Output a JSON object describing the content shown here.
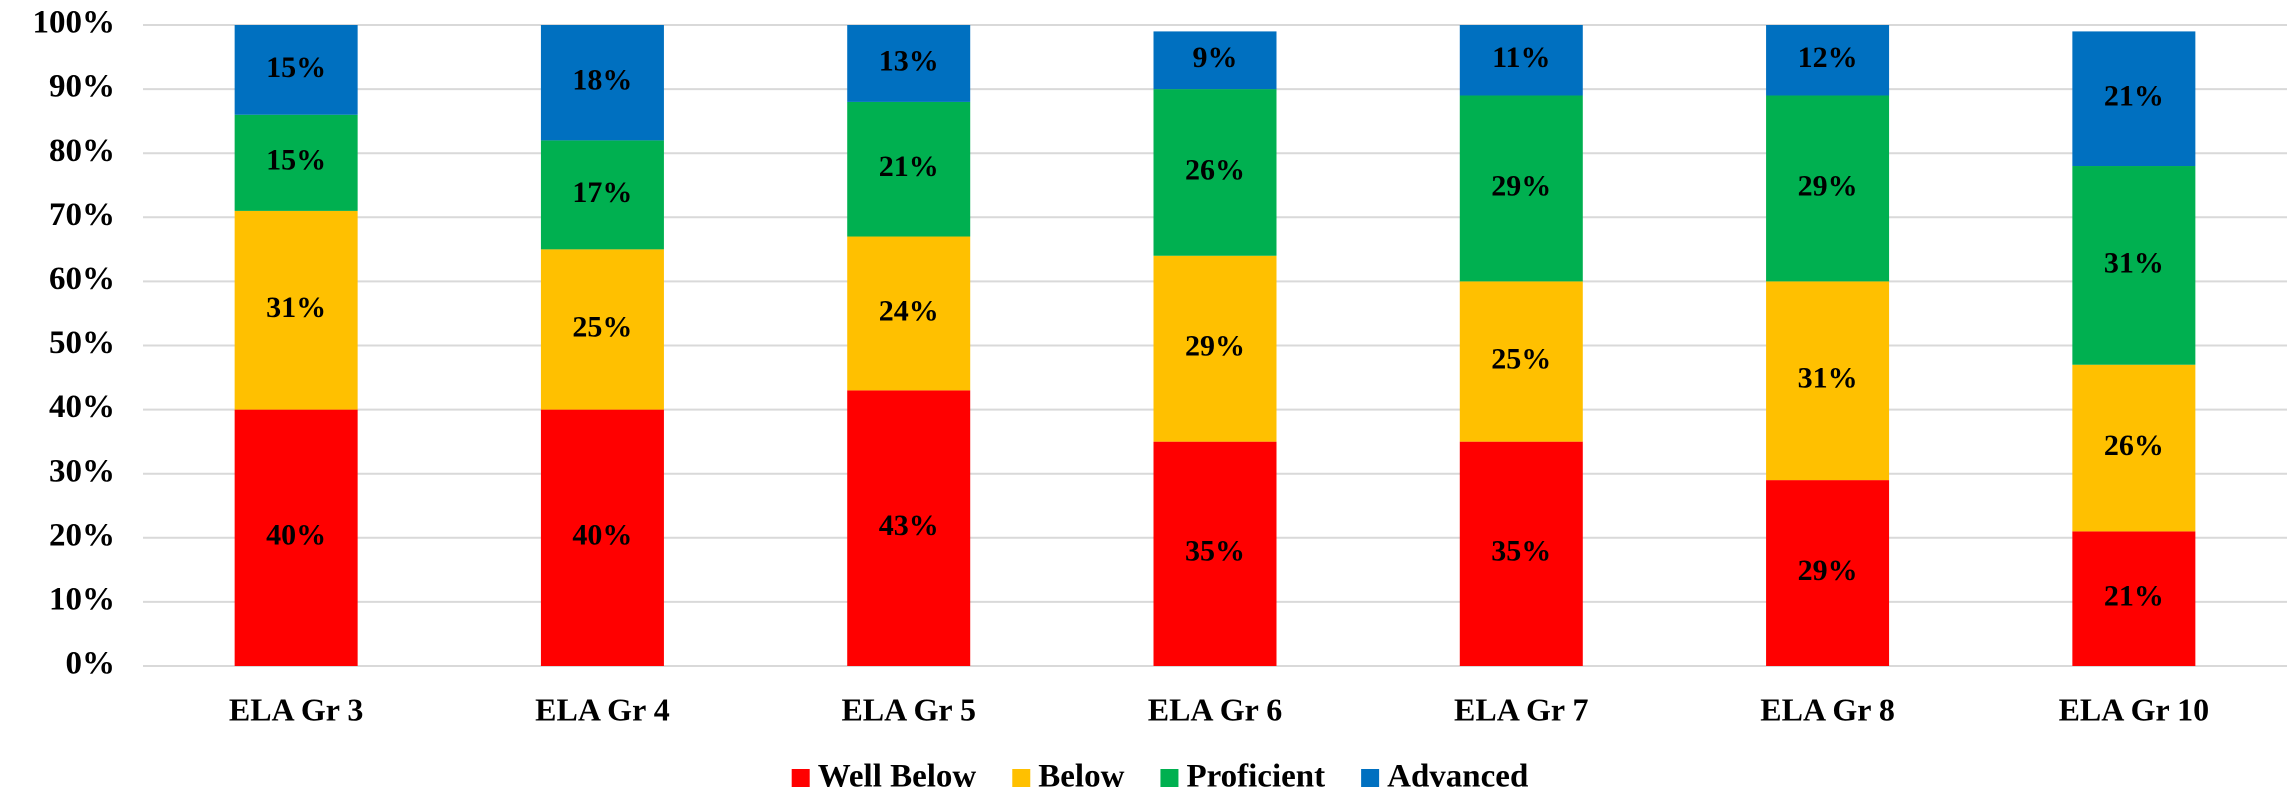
{
  "chart_data": {
    "type": "stacked_bar",
    "categories": [
      "ELA Gr 3",
      "ELA Gr 4",
      "ELA Gr 5",
      "ELA Gr 6",
      "ELA Gr 7",
      "ELA Gr 8",
      "ELA Gr 10"
    ],
    "series": [
      {
        "name": "Well Below",
        "color": "#ff0000",
        "values": [
          40,
          40,
          43,
          35,
          35,
          29,
          21
        ],
        "value_labels": [
          "40%",
          "40%",
          "43%",
          "35%",
          "35%",
          "29%",
          "21%"
        ]
      },
      {
        "name": "Below",
        "color": "#ffc000",
        "values": [
          31,
          25,
          24,
          29,
          25,
          31,
          26
        ],
        "value_labels": [
          "31%",
          "25%",
          "24%",
          "29%",
          "25%",
          "31%",
          "26%"
        ]
      },
      {
        "name": "Proficient",
        "color": "#00b050",
        "values": [
          15,
          17,
          21,
          26,
          29,
          29,
          31
        ],
        "value_labels": [
          "15%",
          "17%",
          "21%",
          "26%",
          "29%",
          "29%",
          "31%"
        ]
      },
      {
        "name": "Advanced",
        "color": "#0070c0",
        "values": [
          15,
          18,
          13,
          9,
          11,
          12,
          21
        ],
        "value_labels": [
          "15%",
          "18%",
          "13%",
          "9%",
          "11%",
          "12%",
          "21%"
        ]
      }
    ],
    "ylim": [
      0,
      100
    ],
    "yticks": [
      {
        "value": 0,
        "label": "0%"
      },
      {
        "value": 10,
        "label": "10%"
      },
      {
        "value": 20,
        "label": "20%"
      },
      {
        "value": 30,
        "label": "30%"
      },
      {
        "value": 40,
        "label": "40%"
      },
      {
        "value": 50,
        "label": "50%"
      },
      {
        "value": 60,
        "label": "60%"
      },
      {
        "value": 70,
        "label": "70%"
      },
      {
        "value": 80,
        "label": "80%"
      },
      {
        "value": 90,
        "label": "90%"
      },
      {
        "value": 100,
        "label": "100%"
      }
    ],
    "grid": true,
    "legend": "bottom"
  }
}
